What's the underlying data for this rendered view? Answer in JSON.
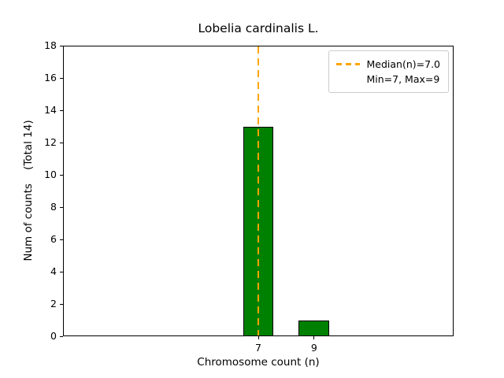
{
  "chart_data": {
    "type": "bar",
    "title": "Lobelia cardinalis L.",
    "xlabel": "Chromosome count (n)",
    "ylabel": "Num of counts    (Total 14)",
    "categories": [
      7,
      9
    ],
    "values": [
      13,
      1
    ],
    "total_counts": 14,
    "bar_color": "#008000",
    "bar_edge_color": "#000000",
    "bar_width_units": 1.1,
    "xlim": [
      0,
      14
    ],
    "ylim": [
      0,
      18
    ],
    "xticks": [
      7,
      9
    ],
    "yticks": [
      0,
      2,
      4,
      6,
      8,
      10,
      12,
      14,
      16,
      18
    ],
    "grid": false,
    "median_line": {
      "x": 7,
      "color": "#ffa500",
      "style": "dashed",
      "label": "Median(n)=7.0"
    },
    "legend": {
      "position": "upper right",
      "entries": [
        {
          "label": "Median(n)=7.0",
          "handle": "dashed-orange-line"
        },
        {
          "label": "Min=7, Max=9",
          "handle": "none"
        }
      ]
    }
  }
}
